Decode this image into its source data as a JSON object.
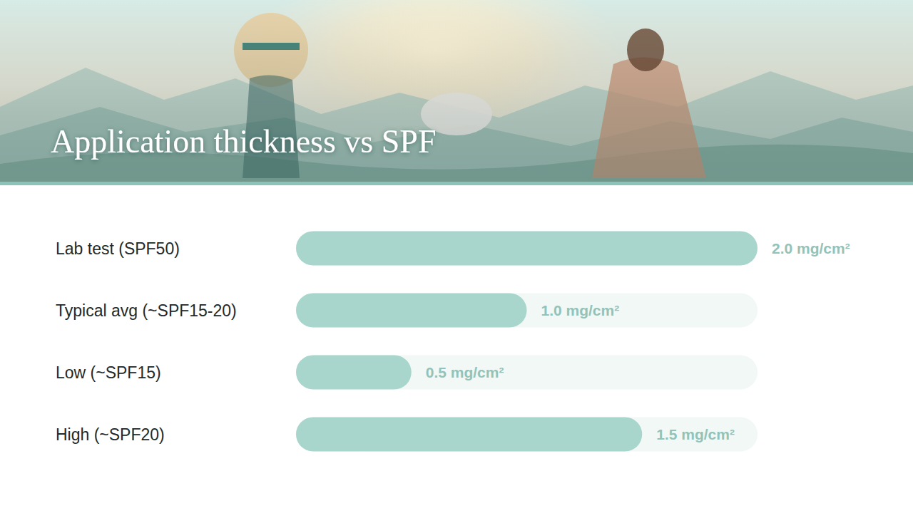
{
  "chart_data": {
    "type": "bar",
    "orientation": "horizontal",
    "title": "Application thickness vs SPF",
    "categories": [
      "Lab test (SPF50)",
      "Typical avg (~SPF15-20)",
      "Low (~SPF15)",
      "High (~SPF20)"
    ],
    "values": [
      2.0,
      1.0,
      0.5,
      1.5
    ],
    "value_labels": [
      "2.0 mg/cm²",
      "1.0 mg/cm²",
      "0.5 mg/cm²",
      "1.5 mg/cm²"
    ],
    "data_labels": true,
    "color": "#a9d6cc",
    "xlim": [
      0,
      2
    ],
    "grid": false,
    "tick_labels": "y"
  }
}
